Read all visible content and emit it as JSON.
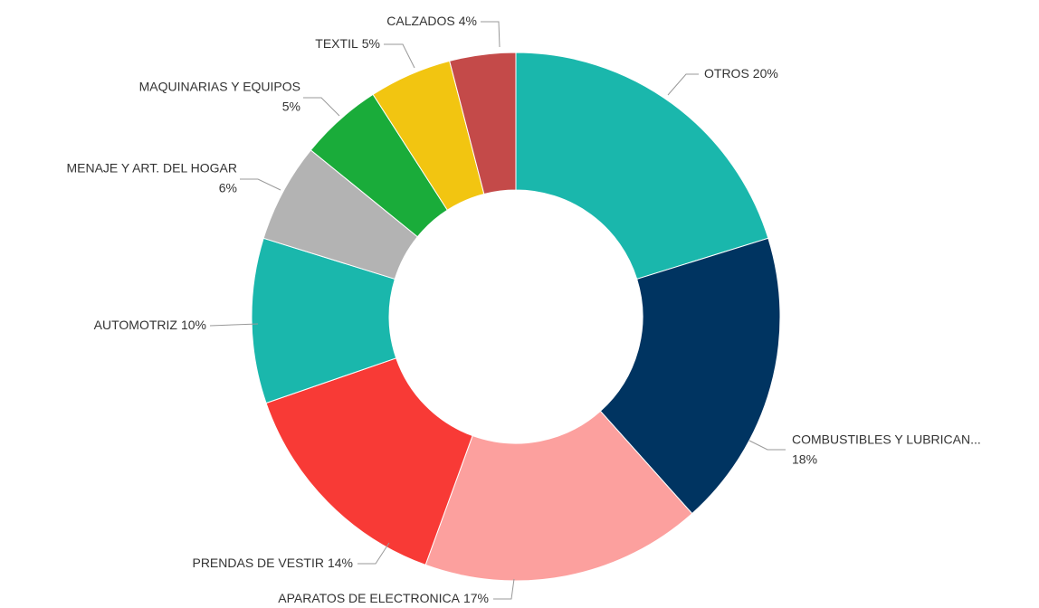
{
  "chart_data": {
    "type": "donut",
    "categories": [
      "OTROS",
      "COMBUSTIBLES Y LUBRICAN...",
      "APARATOS DE ELECTRONICA",
      "PRENDAS DE VESTIR",
      "AUTOMOTRIZ",
      "MENAJE Y ART. DEL HOGAR",
      "MAQUINARIAS Y EQUIPOS",
      "TEXTIL",
      "CALZADOS"
    ],
    "values": [
      20,
      18,
      17,
      14,
      10,
      6,
      5,
      5,
      4
    ],
    "value_labels": [
      "20%",
      "18%",
      "17%",
      "14%",
      "10%",
      "6%",
      "5%",
      "5%",
      "4%"
    ],
    "colors": [
      "#1ab7ac",
      "#003461",
      "#fca09e",
      "#f83a36",
      "#1ab7ac",
      "#b3b3b3",
      "#1aac3a",
      "#f2c511",
      "#c44a49"
    ]
  }
}
